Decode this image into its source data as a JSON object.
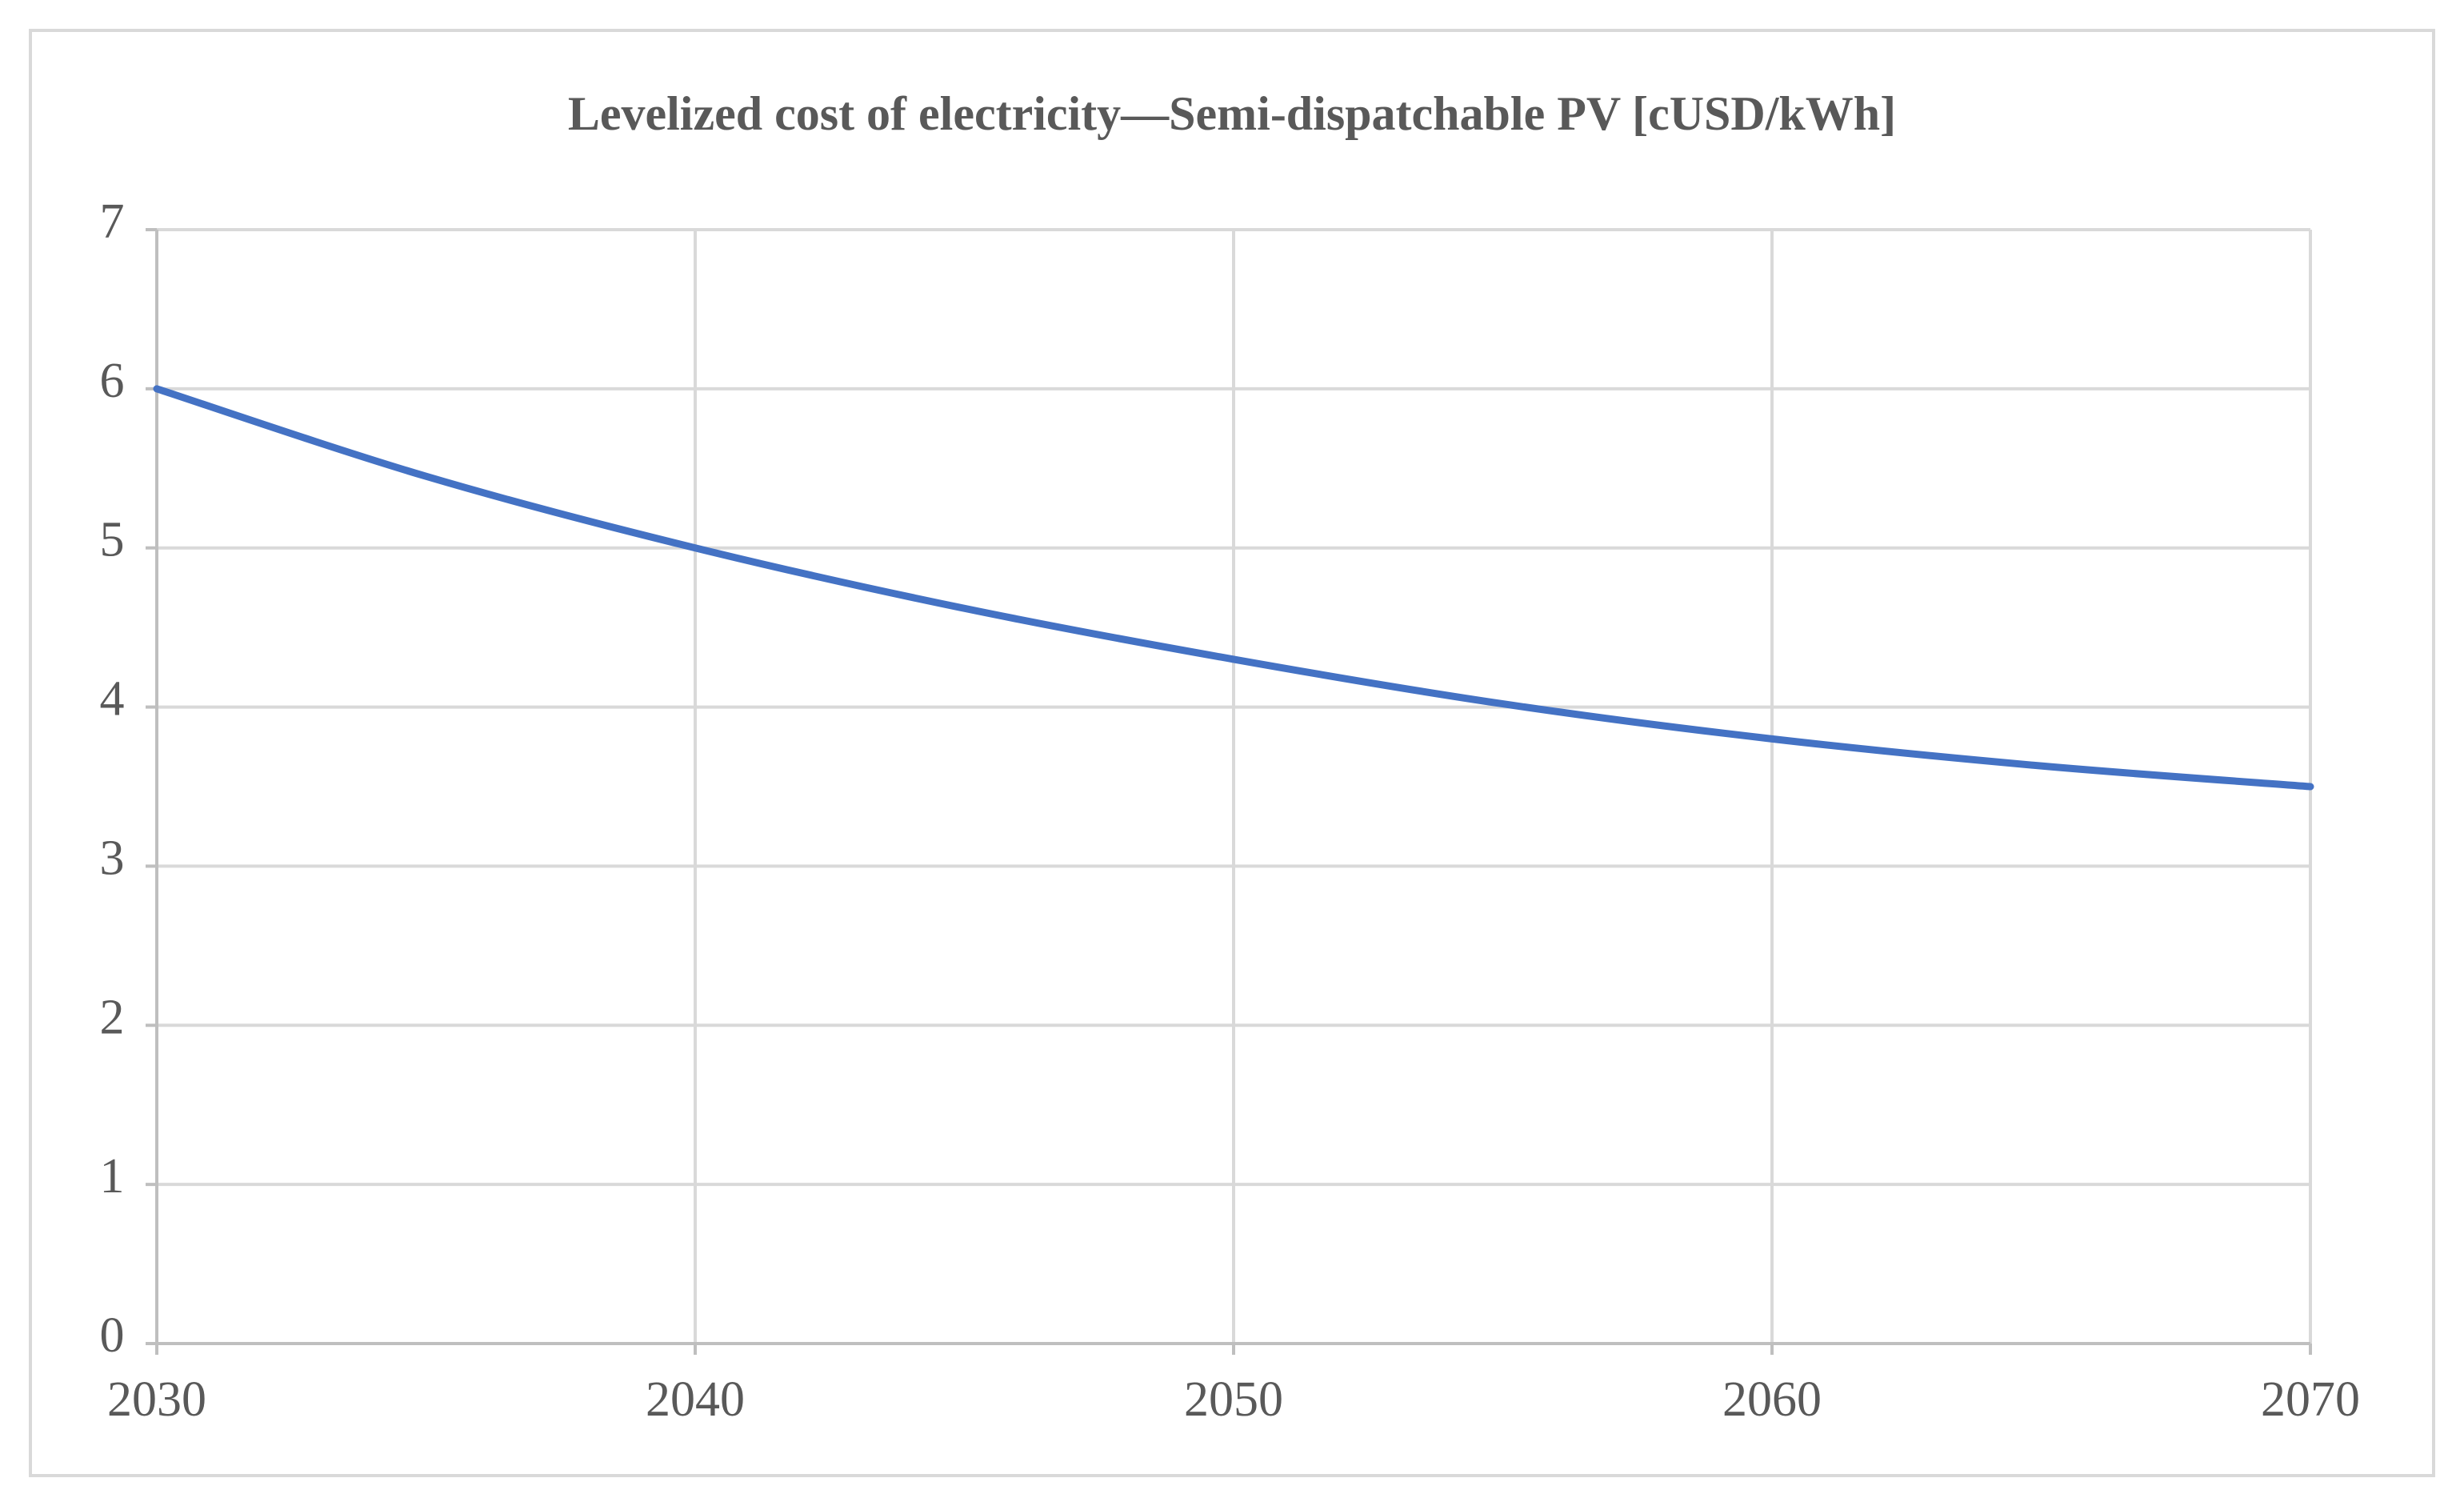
{
  "chart_data": {
    "type": "line",
    "title": "Levelized cost of electricity—Semi-dispatchable PV [cUSD/kWh]",
    "xlabel": "",
    "ylabel": "",
    "x": [
      2030,
      2035,
      2040,
      2045,
      2050,
      2055,
      2060,
      2065,
      2070
    ],
    "series": [
      {
        "name": "Semi-dispatchable PV",
        "values": [
          6.0,
          5.45,
          5.0,
          4.62,
          4.3,
          4.02,
          3.8,
          3.63,
          3.5
        ],
        "color": "#4472c4"
      }
    ],
    "xlim": [
      2030,
      2070
    ],
    "ylim": [
      0,
      7
    ],
    "xticks": [
      "2030",
      "2040",
      "2050",
      "2060",
      "2070"
    ],
    "yticks": [
      "0",
      "1",
      "2",
      "3",
      "4",
      "5",
      "6",
      "7"
    ],
    "grid": true
  }
}
